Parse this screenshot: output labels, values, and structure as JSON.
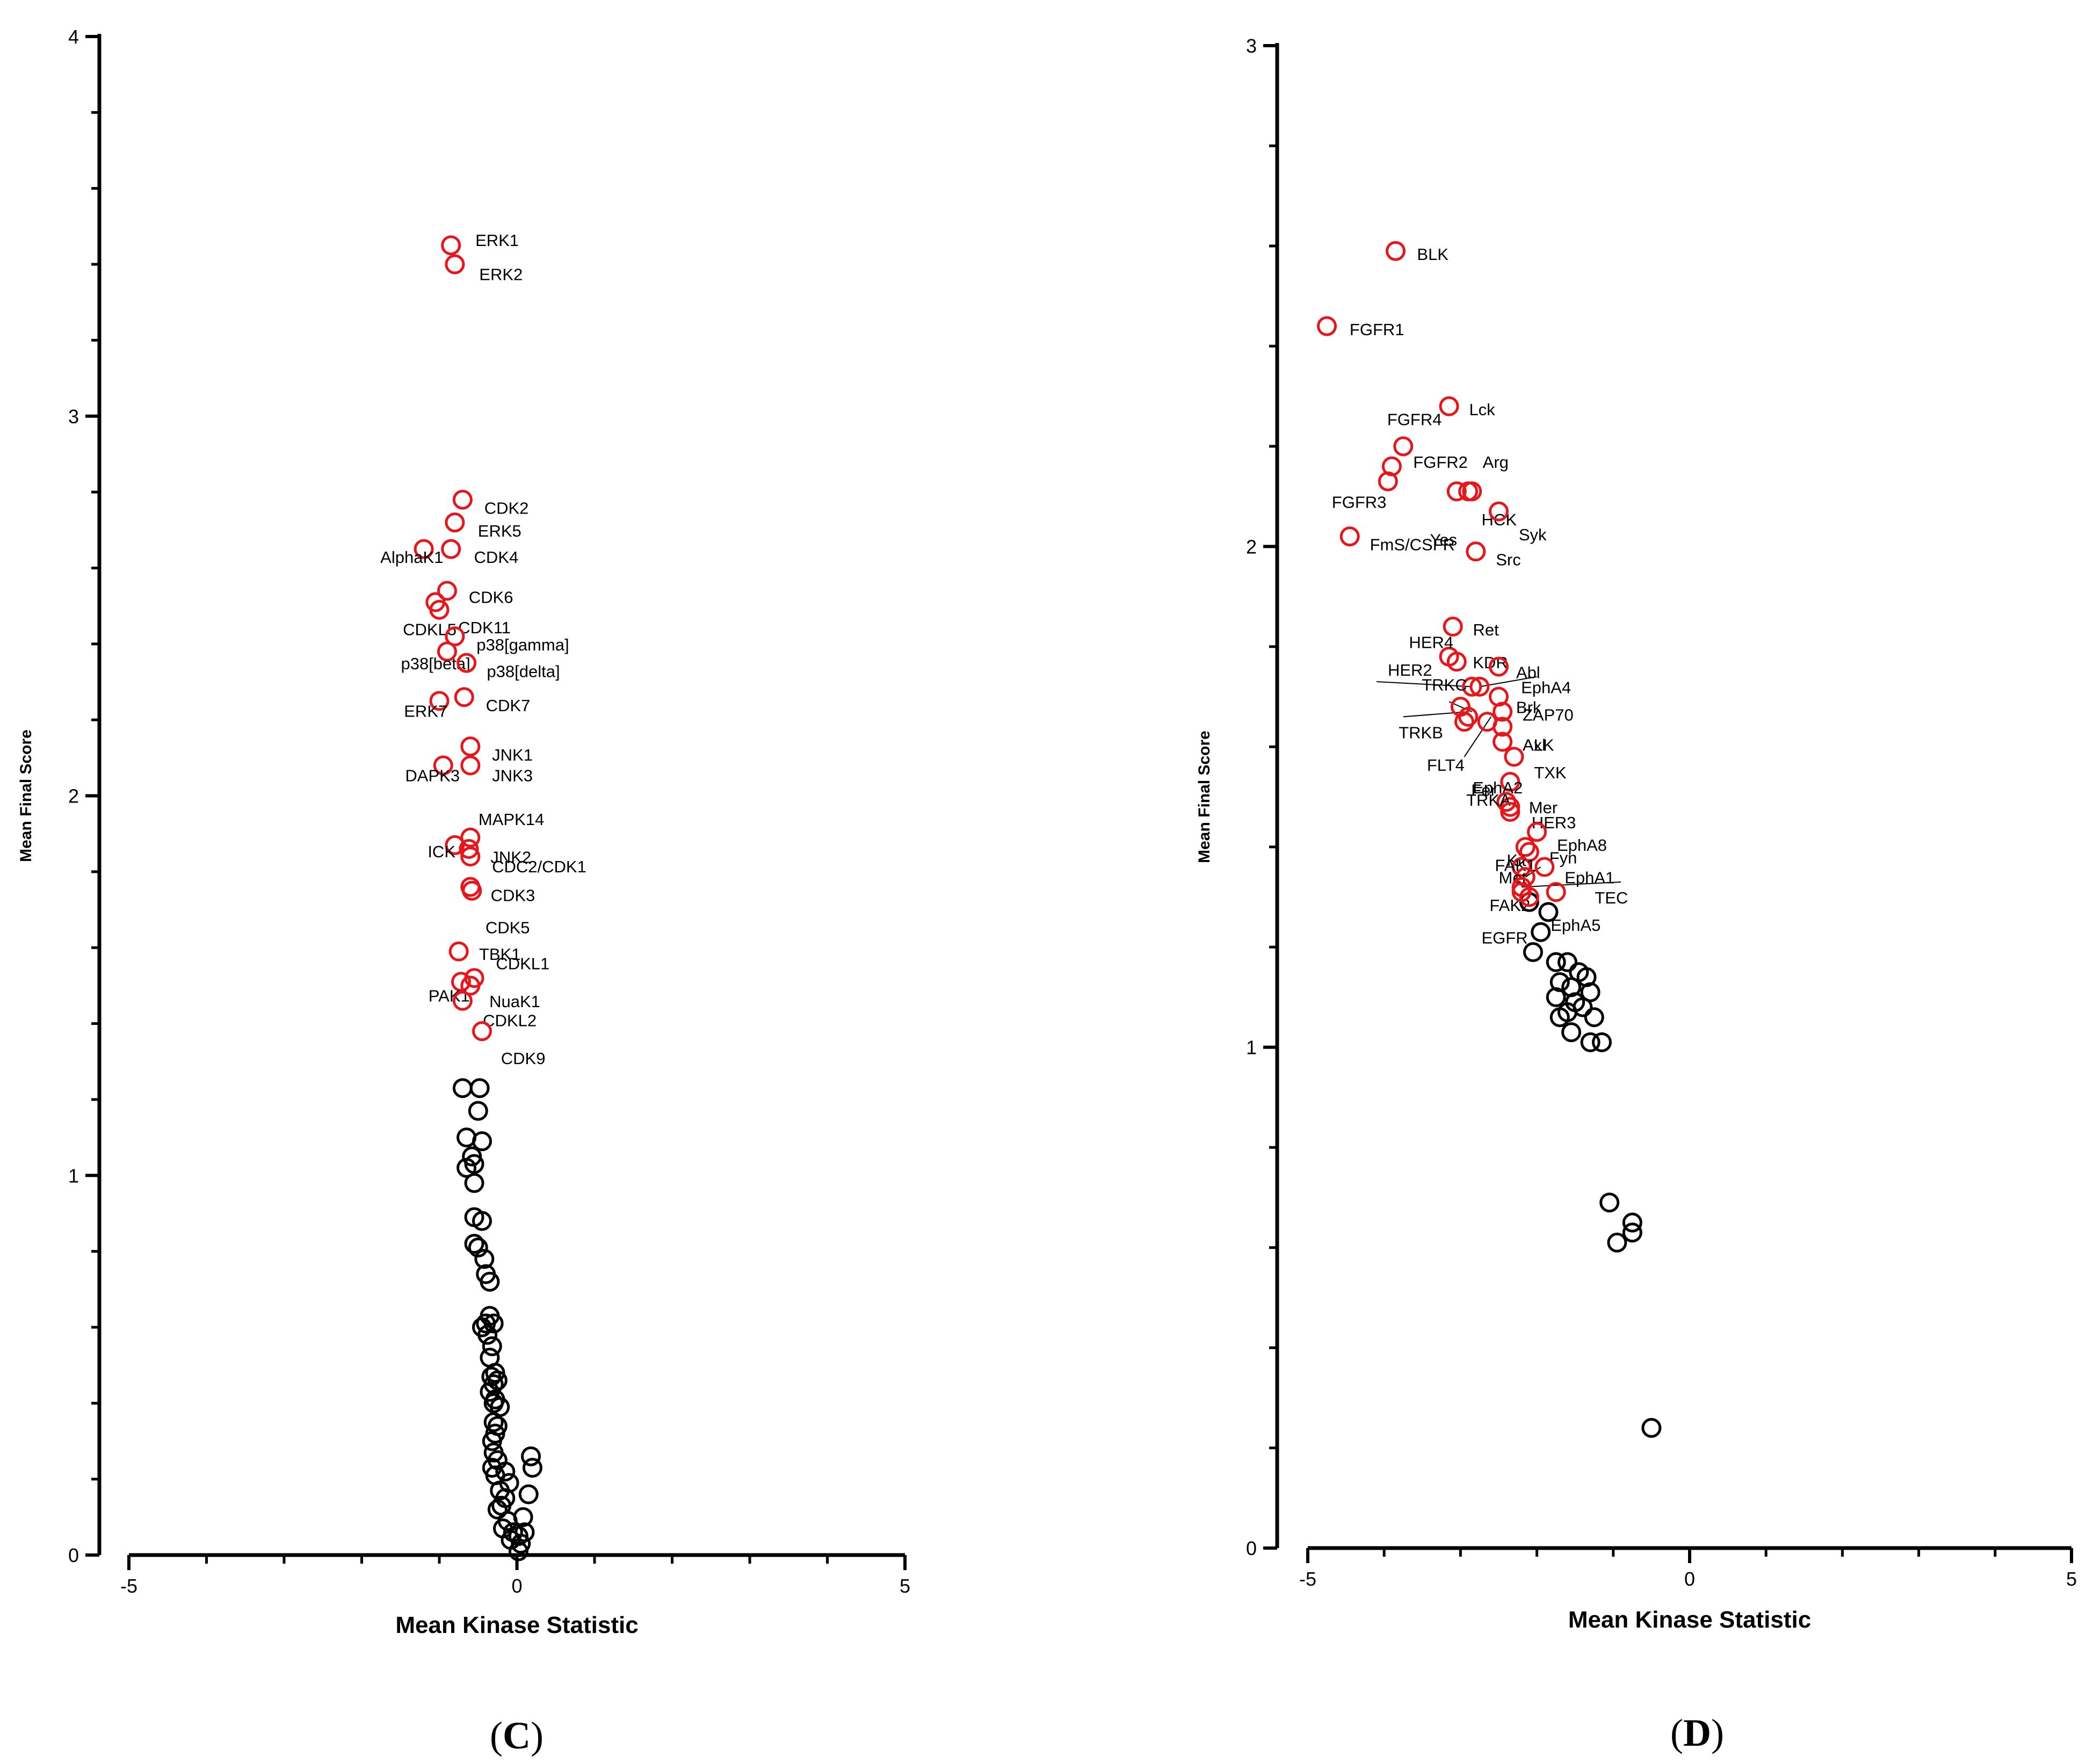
{
  "chart_data": [
    {
      "type": "scatter",
      "panel_label": "(C)",
      "panel_open": "(",
      "panel_letter": "C",
      "panel_close": ")",
      "xlabel": "Mean Kinase Statistic",
      "ylabel": "Mean Final Score",
      "xlim": [
        -5,
        5
      ],
      "ylim": [
        0,
        4
      ],
      "xticks": [
        "-5",
        "0",
        "5"
      ],
      "yticks": [
        "0",
        "1",
        "2",
        "3",
        "4"
      ],
      "marker_color_significant": "#e8161b",
      "marker_color_other": "#000000",
      "labeled_points": [
        {
          "name": "ERK1",
          "x": -0.85,
          "y": 3.45
        },
        {
          "name": "ERK2",
          "x": -0.8,
          "y": 3.4
        },
        {
          "name": "CDK2",
          "x": -0.7,
          "y": 2.78
        },
        {
          "name": "ERK5",
          "x": -0.8,
          "y": 2.72
        },
        {
          "name": "AlphaK1",
          "x": -1.2,
          "y": 2.65
        },
        {
          "name": "CDK4",
          "x": -0.85,
          "y": 2.65
        },
        {
          "name": "CDK6",
          "x": -0.9,
          "y": 2.54
        },
        {
          "name": "CDKL5",
          "x": -1.05,
          "y": 2.51
        },
        {
          "name": "CDK11",
          "x": -1.0,
          "y": 2.49
        },
        {
          "name": "p38[gamma]",
          "x": -0.8,
          "y": 2.42
        },
        {
          "name": "p38[beta]",
          "x": -0.9,
          "y": 2.38
        },
        {
          "name": "p38[delta]",
          "x": -0.65,
          "y": 2.35
        },
        {
          "name": "CDK7",
          "x": -0.68,
          "y": 2.26
        },
        {
          "name": "ERK7",
          "x": -1.0,
          "y": 2.25
        },
        {
          "name": "JNK1",
          "x": -0.6,
          "y": 2.13
        },
        {
          "name": "DAPK3",
          "x": -0.95,
          "y": 2.08
        },
        {
          "name": "JNK3",
          "x": -0.6,
          "y": 2.08
        },
        {
          "name": "MAPK14",
          "x": -0.6,
          "y": 1.89
        },
        {
          "name": "ICK",
          "x": -0.8,
          "y": 1.87
        },
        {
          "name": "JNK2",
          "x": -0.62,
          "y": 1.86
        },
        {
          "name": "CDC2/CDK1",
          "x": -0.6,
          "y": 1.84
        },
        {
          "name": "CDK3",
          "x": -0.6,
          "y": 1.76
        },
        {
          "name": "CDK5",
          "x": -0.58,
          "y": 1.75
        },
        {
          "name": "TBK1",
          "x": -0.75,
          "y": 1.59
        },
        {
          "name": "CDKL1",
          "x": -0.55,
          "y": 1.52
        },
        {
          "name": "PAK1",
          "x": -0.72,
          "y": 1.51
        },
        {
          "name": "NuaK1",
          "x": -0.6,
          "y": 1.5
        },
        {
          "name": "CDKL2",
          "x": -0.7,
          "y": 1.46
        },
        {
          "name": "CDK9",
          "x": -0.45,
          "y": 1.38
        }
      ],
      "unlabeled_points": [
        {
          "x": -0.7,
          "y": 1.23
        },
        {
          "x": -0.48,
          "y": 1.23
        },
        {
          "x": -0.5,
          "y": 1.17
        },
        {
          "x": -0.65,
          "y": 1.1
        },
        {
          "x": -0.45,
          "y": 1.09
        },
        {
          "x": -0.58,
          "y": 1.05
        },
        {
          "x": -0.55,
          "y": 1.03
        },
        {
          "x": -0.65,
          "y": 1.02
        },
        {
          "x": -0.55,
          "y": 0.98
        },
        {
          "x": -0.55,
          "y": 0.89
        },
        {
          "x": -0.45,
          "y": 0.88
        },
        {
          "x": -0.55,
          "y": 0.82
        },
        {
          "x": -0.5,
          "y": 0.81
        },
        {
          "x": -0.42,
          "y": 0.78
        },
        {
          "x": -0.4,
          "y": 0.74
        },
        {
          "x": -0.35,
          "y": 0.72
        },
        {
          "x": -0.35,
          "y": 0.63
        },
        {
          "x": -0.4,
          "y": 0.61
        },
        {
          "x": -0.3,
          "y": 0.61
        },
        {
          "x": -0.45,
          "y": 0.6
        },
        {
          "x": -0.38,
          "y": 0.58
        },
        {
          "x": -0.32,
          "y": 0.55
        },
        {
          "x": -0.35,
          "y": 0.52
        },
        {
          "x": -0.28,
          "y": 0.48
        },
        {
          "x": -0.33,
          "y": 0.47
        },
        {
          "x": -0.25,
          "y": 0.46
        },
        {
          "x": -0.3,
          "y": 0.45
        },
        {
          "x": -0.35,
          "y": 0.43
        },
        {
          "x": -0.28,
          "y": 0.41
        },
        {
          "x": -0.3,
          "y": 0.4
        },
        {
          "x": -0.22,
          "y": 0.39
        },
        {
          "x": -0.3,
          "y": 0.35
        },
        {
          "x": -0.25,
          "y": 0.34
        },
        {
          "x": -0.28,
          "y": 0.32
        },
        {
          "x": -0.32,
          "y": 0.3
        },
        {
          "x": -0.3,
          "y": 0.27
        },
        {
          "x": -0.25,
          "y": 0.25
        },
        {
          "x": -0.32,
          "y": 0.23
        },
        {
          "x": -0.28,
          "y": 0.21
        },
        {
          "x": 0.18,
          "y": 0.26
        },
        {
          "x": 0.2,
          "y": 0.23
        },
        {
          "x": -0.15,
          "y": 0.22
        },
        {
          "x": -0.1,
          "y": 0.19
        },
        {
          "x": -0.22,
          "y": 0.17
        },
        {
          "x": 0.15,
          "y": 0.16
        },
        {
          "x": -0.15,
          "y": 0.15
        },
        {
          "x": -0.2,
          "y": 0.13
        },
        {
          "x": -0.25,
          "y": 0.12
        },
        {
          "x": 0.08,
          "y": 0.1
        },
        {
          "x": -0.12,
          "y": 0.09
        },
        {
          "x": -0.18,
          "y": 0.07
        },
        {
          "x": 0.1,
          "y": 0.06
        },
        {
          "x": -0.05,
          "y": 0.06
        },
        {
          "x": 0.02,
          "y": 0.05
        },
        {
          "x": -0.08,
          "y": 0.04
        },
        {
          "x": 0.05,
          "y": 0.03
        },
        {
          "x": 0.02,
          "y": 0.01
        }
      ]
    },
    {
      "type": "scatter",
      "panel_label": "(D)",
      "panel_open": "(",
      "panel_letter": "D",
      "panel_close": ")",
      "xlabel": "Mean Kinase Statistic",
      "ylabel": "Mean Final Score",
      "xlim": [
        -5,
        5
      ],
      "ylim": [
        0,
        3
      ],
      "xticks": [
        "-5",
        "0",
        "5"
      ],
      "yticks": [
        "0",
        "1",
        "2",
        "3"
      ],
      "marker_color_significant": "#e8161b",
      "marker_color_other": "#000000",
      "labeled_points": [
        {
          "name": "BLK",
          "x": -3.85,
          "y": 2.59
        },
        {
          "name": "FGFR1",
          "x": -4.75,
          "y": 2.44
        },
        {
          "name": "Lck",
          "x": -3.15,
          "y": 2.28
        },
        {
          "name": "FGFR4",
          "x": -3.75,
          "y": 2.2
        },
        {
          "name": "FGFR2",
          "x": -3.9,
          "y": 2.16
        },
        {
          "name": "Arg",
          "x": -2.85,
          "y": 2.11
        },
        {
          "name": "FGFR3",
          "x": -3.95,
          "y": 2.13
        },
        {
          "name": "Yes",
          "x": -3.05,
          "y": 2.11
        },
        {
          "name": "HCK",
          "x": -2.9,
          "y": 2.11
        },
        {
          "name": "Syk",
          "x": -2.5,
          "y": 2.07
        },
        {
          "name": "FmS/CSFR",
          "x": -4.45,
          "y": 2.02
        },
        {
          "name": "Src",
          "x": -2.8,
          "y": 1.99
        },
        {
          "name": "Ret",
          "x": -3.1,
          "y": 1.84
        },
        {
          "name": "HER4",
          "x": -3.15,
          "y": 1.78
        },
        {
          "name": "KDR",
          "x": -3.05,
          "y": 1.77
        },
        {
          "name": "Abl",
          "x": -2.5,
          "y": 1.76
        },
        {
          "name": "HER2",
          "x": -2.85,
          "y": 1.72
        },
        {
          "name": "EphA4",
          "x": -2.75,
          "y": 1.72
        },
        {
          "name": "Brk",
          "x": -2.5,
          "y": 1.7
        },
        {
          "name": "TRKC",
          "x": -3.0,
          "y": 1.68
        },
        {
          "name": "ZAP70",
          "x": -2.45,
          "y": 1.67
        },
        {
          "name": "TRKB",
          "x": -2.9,
          "y": 1.66
        },
        {
          "name": "FLT4",
          "x": -2.95,
          "y": 1.65
        },
        {
          "name": "ALK",
          "x": -2.45,
          "y": 1.64
        },
        {
          "name": "Fer",
          "x": -2.65,
          "y": 1.65
        },
        {
          "name": "Axl",
          "x": -2.45,
          "y": 1.61
        },
        {
          "name": "TXK",
          "x": -2.3,
          "y": 1.58
        },
        {
          "name": "EphA2",
          "x": -2.35,
          "y": 1.53
        },
        {
          "name": "Mer",
          "x": -2.35,
          "y": 1.48
        },
        {
          "name": "TRKA",
          "x": -2.4,
          "y": 1.49
        },
        {
          "name": "HER3",
          "x": -2.35,
          "y": 1.47
        },
        {
          "name": "EphA8",
          "x": -2.0,
          "y": 1.43
        },
        {
          "name": "Kit",
          "x": -2.15,
          "y": 1.4
        },
        {
          "name": "Fyn",
          "x": -2.1,
          "y": 1.39
        },
        {
          "name": "FAK1",
          "x": -2.2,
          "y": 1.36
        },
        {
          "name": "EphA1",
          "x": -1.9,
          "y": 1.36
        },
        {
          "name": "Met",
          "x": -2.15,
          "y": 1.34
        },
        {
          "name": "TEC",
          "x": -1.75,
          "y": 1.31
        },
        {
          "name": "FAK2",
          "x": -2.2,
          "y": 1.32
        },
        {
          "name": "EGFR",
          "x": -2.2,
          "y": 1.31
        },
        {
          "name": "EphA5",
          "x": -2.1,
          "y": 1.3
        }
      ],
      "unlabeled_points": [
        {
          "x": -2.1,
          "y": 1.29
        },
        {
          "x": -1.85,
          "y": 1.27
        },
        {
          "x": -1.95,
          "y": 1.23
        },
        {
          "x": -2.05,
          "y": 1.19
        },
        {
          "x": -1.75,
          "y": 1.17
        },
        {
          "x": -1.6,
          "y": 1.17
        },
        {
          "x": -1.45,
          "y": 1.15
        },
        {
          "x": -1.35,
          "y": 1.14
        },
        {
          "x": -1.7,
          "y": 1.13
        },
        {
          "x": -1.55,
          "y": 1.12
        },
        {
          "x": -1.3,
          "y": 1.11
        },
        {
          "x": -1.75,
          "y": 1.1
        },
        {
          "x": -1.5,
          "y": 1.09
        },
        {
          "x": -1.4,
          "y": 1.08
        },
        {
          "x": -1.6,
          "y": 1.07
        },
        {
          "x": -1.25,
          "y": 1.06
        },
        {
          "x": -1.7,
          "y": 1.06
        },
        {
          "x": -1.55,
          "y": 1.03
        },
        {
          "x": -1.3,
          "y": 1.01
        },
        {
          "x": -1.15,
          "y": 1.01
        },
        {
          "x": -1.05,
          "y": 0.69
        },
        {
          "x": -0.75,
          "y": 0.65
        },
        {
          "x": -0.75,
          "y": 0.63
        },
        {
          "x": -0.95,
          "y": 0.61
        },
        {
          "x": -0.5,
          "y": 0.24
        }
      ]
    }
  ]
}
